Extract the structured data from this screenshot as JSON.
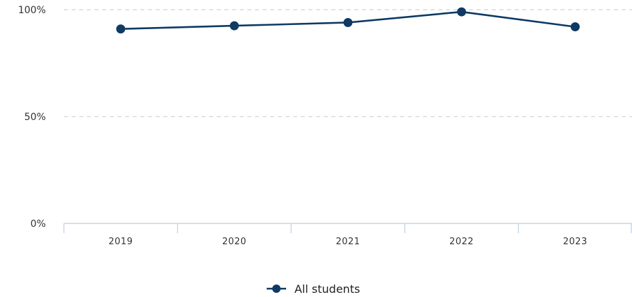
{
  "chart_data": {
    "type": "line",
    "title": "",
    "xlabel": "",
    "ylabel": "",
    "categories": [
      "2019",
      "2020",
      "2021",
      "2022",
      "2023"
    ],
    "series": [
      {
        "name": "All students",
        "color": "#0e3a64",
        "values": [
          91,
          92.5,
          94,
          99,
          92
        ]
      }
    ],
    "ylim": [
      0,
      100
    ],
    "y_ticks": [
      {
        "value": 0,
        "label": "0%"
      },
      {
        "value": 50,
        "label": "50%"
      },
      {
        "value": 100,
        "label": "100%"
      }
    ],
    "grid": true,
    "legend_position": "bottom-center"
  }
}
